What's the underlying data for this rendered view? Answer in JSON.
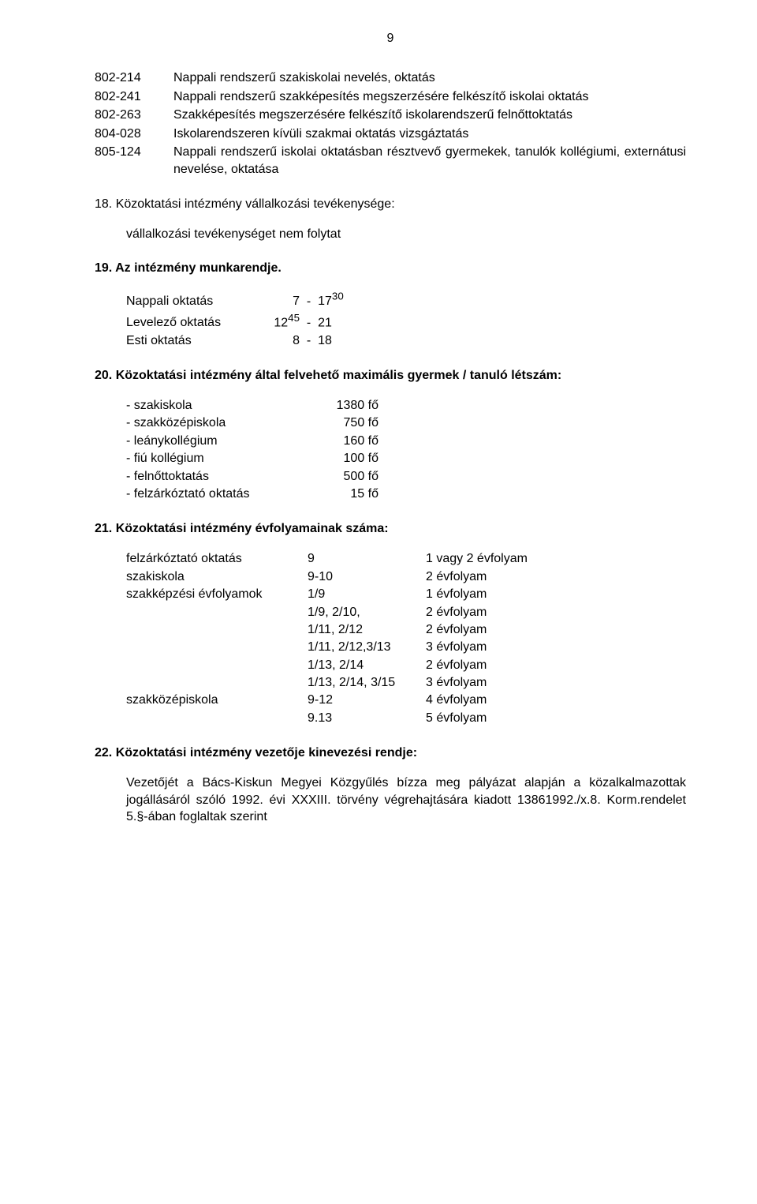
{
  "page_number": "9",
  "codes": [
    {
      "code": "802-214",
      "desc": "Nappali rendszerű szakiskolai nevelés, oktatás"
    },
    {
      "code": "802-241",
      "desc": "Nappali rendszerű szakképesítés megszerzésére felkészítő iskolai oktatás"
    },
    {
      "code": "802-263",
      "desc": "Szakképesítés megszerzésére felkészítő iskolarendszerű felnőttoktatás"
    },
    {
      "code": "804-028",
      "desc": "Iskolarendszeren kívüli szakmai oktatás vizsgáztatás"
    },
    {
      "code": "805-124",
      "desc": "Nappali rendszerű iskolai oktatásban résztvevő gyermekek, tanulók kollégiumi, externátusi nevelése, oktatása"
    }
  ],
  "s18": {
    "heading": "18. Közoktatási intézmény vállalkozási tevékenysége:",
    "text": "vállalkozási tevékenységet nem folytat"
  },
  "s19": {
    "heading": "19. Az intézmény munkarendje.",
    "rows": [
      {
        "label": "Nappali oktatás",
        "from": "7",
        "to": "17",
        "to_sup": "30"
      },
      {
        "label": "Levelező oktatás",
        "from": "12",
        "from_sup": "45",
        "to": "21"
      },
      {
        "label": "Esti oktatás",
        "from": "8",
        "to": "18"
      }
    ]
  },
  "s20": {
    "heading": "20. Közoktatási intézmény által felvehető maximális gyermek / tanuló létszám:",
    "rows": [
      {
        "label": "- szakiskola",
        "val": "1380 fő"
      },
      {
        "label": "- szakközépiskola",
        "val": "750 fő"
      },
      {
        "label": "- leánykollégium",
        "val": "160 fő"
      },
      {
        "label": "- fiú kollégium",
        "val": "100 fő"
      },
      {
        "label": "- felnőttoktatás",
        "val": "500 fő"
      },
      {
        "label": "- felzárkóztató oktatás",
        "val": "15 fő"
      }
    ]
  },
  "s21": {
    "heading": "21. Közoktatási intézmény évfolyamainak száma:",
    "rows": [
      {
        "c1": "felzárkóztató oktatás",
        "c2": "9",
        "c3": "1 vagy 2 évfolyam"
      },
      {
        "c1": "szakiskola",
        "c2": "9-10",
        "c3": "2 évfolyam"
      },
      {
        "c1": "szakképzési évfolyamok",
        "c2": "1/9",
        "c3": "1 évfolyam"
      },
      {
        "c1": "",
        "c2": "1/9, 2/10,",
        "c3": "2 évfolyam"
      },
      {
        "c1": "",
        "c2": "1/11, 2/12",
        "c3": "2 évfolyam"
      },
      {
        "c1": "",
        "c2": "1/11, 2/12,3/13",
        "c3": "3 évfolyam"
      },
      {
        "c1": "",
        "c2": "1/13, 2/14",
        "c3": "2 évfolyam"
      },
      {
        "c1": "",
        "c2": "1/13, 2/14, 3/15",
        "c3": "3 évfolyam"
      },
      {
        "c1": "szakközépiskola",
        "c2": "9-12",
        "c3": "4 évfolyam"
      },
      {
        "c1": "",
        "c2": "9.13",
        "c3": "5 évfolyam"
      }
    ]
  },
  "s22": {
    "heading": "22. Közoktatási intézmény vezetője kinevezési rendje:",
    "text": "Vezetőjét a Bács-Kiskun Megyei Közgyűlés bízza meg pályázat alapján a közalkalmazottak jogállásáról szóló 1992. évi XXXIII. törvény végrehajtására kiadott 13861992./x.8. Korm.rendelet 5.§-ában foglaltak szerint"
  },
  "style": {
    "background": "#ffffff",
    "text_color": "#000000",
    "font_family": "Arial, Helvetica, sans-serif",
    "base_fontsize": 16
  }
}
